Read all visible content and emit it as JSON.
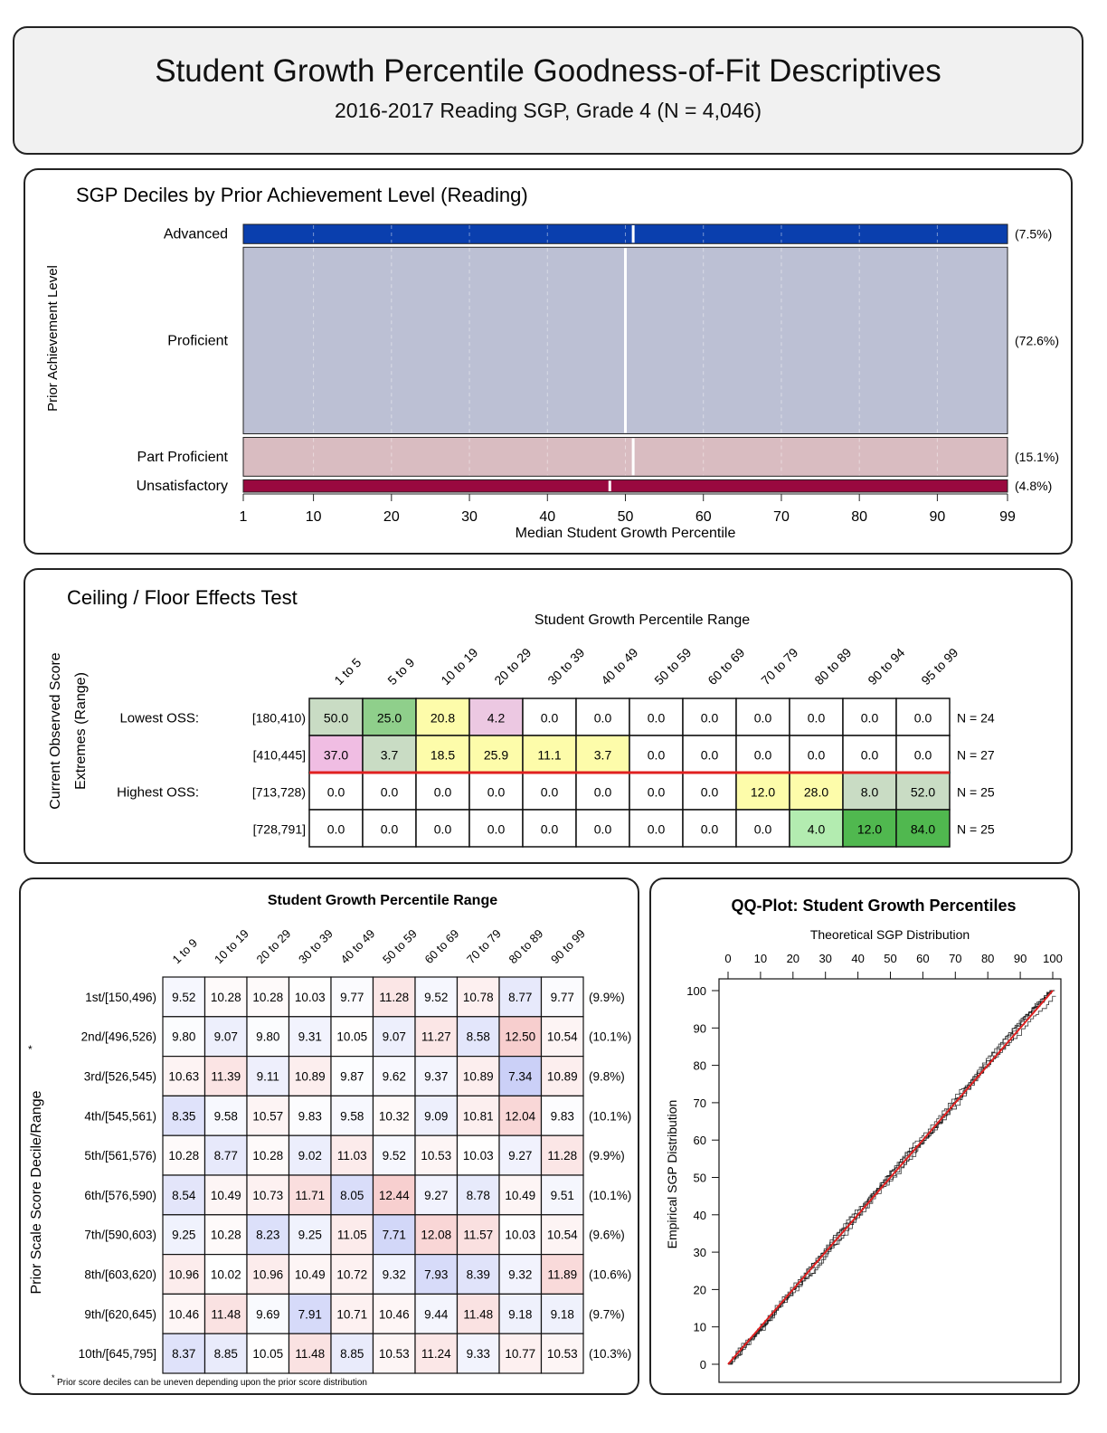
{
  "header": {
    "title": "Student Growth Percentile Goodness-of-Fit Descriptives",
    "subtitle": "2016-2017 Reading SGP, Grade 4 (N = 4,046)"
  },
  "chart_data": [
    {
      "type": "bar",
      "title": "SGP Deciles by Prior Achievement Level (Reading)",
      "ylabel": "Prior Achievement Level",
      "xlabel": "Median Student Growth Percentile",
      "x_ticks": [
        1,
        10,
        20,
        30,
        40,
        50,
        60,
        70,
        80,
        90,
        99
      ],
      "xlim": [
        1,
        99
      ],
      "levels": [
        {
          "name": "Advanced",
          "share": 7.5,
          "share_label": "(7.5%)",
          "median": 51,
          "color": "#0a3fae"
        },
        {
          "name": "Proficient",
          "share": 72.6,
          "share_label": "(72.6%)",
          "median": 50,
          "color": "#bcc0d4"
        },
        {
          "name": "Part Proficient",
          "share": 15.1,
          "share_label": "(15.1%)",
          "median": 51,
          "color": "#d9bcc1"
        },
        {
          "name": "Unsatisfactory",
          "share": 4.8,
          "share_label": "(4.8%)",
          "median": 48,
          "color": "#99093f"
        }
      ],
      "decile_guides": [
        10,
        20,
        30,
        40,
        50,
        60,
        70,
        80,
        90
      ]
    },
    {
      "type": "table",
      "title": "Ceiling / Floor Effects Test",
      "col_header": "Student Growth Percentile Range",
      "row_header": [
        "Current Observed Score",
        "Extremes (Range)"
      ],
      "columns": [
        "1 to 5",
        "5 to 9",
        "10 to 19",
        "20 to 29",
        "30 to 39",
        "40 to 49",
        "50 to 59",
        "60 to 69",
        "70 to 79",
        "80 to 89",
        "90 to 94",
        "95 to 99"
      ],
      "rows": [
        {
          "group": "Lowest OSS:",
          "range": "[180,410)",
          "n": "N = 24",
          "values": [
            "50.0",
            "25.0",
            "20.8",
            "4.2",
            "0.0",
            "0.0",
            "0.0",
            "0.0",
            "0.0",
            "0.0",
            "0.0",
            "0.0"
          ],
          "colors": [
            "#c9dcc4",
            "#8fcf8b",
            "#fdfcaa",
            "#ecc8e2",
            "#fff",
            "#fff",
            "#fff",
            "#fff",
            "#fff",
            "#fff",
            "#fff",
            "#fff"
          ]
        },
        {
          "group": "",
          "range": "[410,445]",
          "n": "N = 27",
          "values": [
            "37.0",
            "3.7",
            "18.5",
            "25.9",
            "11.1",
            "3.7",
            "0.0",
            "0.0",
            "0.0",
            "0.0",
            "0.0",
            "0.0"
          ],
          "colors": [
            "#f0bde3",
            "#c9dcc4",
            "#fdfcaa",
            "#fdfcaa",
            "#fdfcaa",
            "#fdfcaa",
            "#fff",
            "#fff",
            "#fff",
            "#fff",
            "#fff",
            "#fff"
          ]
        },
        {
          "group": "Highest OSS:",
          "range": "[713,728)",
          "n": "N = 25",
          "values": [
            "0.0",
            "0.0",
            "0.0",
            "0.0",
            "0.0",
            "0.0",
            "0.0",
            "0.0",
            "12.0",
            "28.0",
            "8.0",
            "52.0"
          ],
          "colors": [
            "#fff",
            "#fff",
            "#fff",
            "#fff",
            "#fff",
            "#fff",
            "#fff",
            "#fff",
            "#fdfcaa",
            "#fdfcaa",
            "#c9dcc4",
            "#c9dcc4"
          ]
        },
        {
          "group": "",
          "range": "[728,791]",
          "n": "N = 25",
          "values": [
            "0.0",
            "0.0",
            "0.0",
            "0.0",
            "0.0",
            "0.0",
            "0.0",
            "0.0",
            "0.0",
            "4.0",
            "12.0",
            "84.0"
          ],
          "colors": [
            "#fff",
            "#fff",
            "#fff",
            "#fff",
            "#fff",
            "#fff",
            "#fff",
            "#fff",
            "#fff",
            "#b3ecb0",
            "#50b84f",
            "#50b84f"
          ]
        }
      ],
      "divider_color": "#e02020"
    },
    {
      "type": "heatmap",
      "title": "Student Growth Percentile Range",
      "ylabel": "Prior Scale Score Decile/Range",
      "ylabel_mark": "*",
      "footnote_mark": "*",
      "footnote": "Prior score deciles can be uneven depending upon the prior score distribution",
      "columns": [
        "1 to 9",
        "10 to 19",
        "20 to 29",
        "30 to 39",
        "40 to 49",
        "50 to 59",
        "60 to 69",
        "70 to 79",
        "80 to 89",
        "90 to 99"
      ],
      "rows": [
        {
          "label": "1st/[150,496)",
          "share": "(9.9%)",
          "values": [
            "9.52",
            "10.28",
            "10.28",
            "10.03",
            "9.77",
            "11.28",
            "9.52",
            "10.78",
            "8.77",
            "9.77"
          ]
        },
        {
          "label": "2nd/[496,526)",
          "share": "(10.1%)",
          "values": [
            "9.80",
            "9.07",
            "9.80",
            "9.31",
            "10.05",
            "9.07",
            "11.27",
            "8.58",
            "12.50",
            "10.54"
          ]
        },
        {
          "label": "3rd/[526,545)",
          "share": "(9.8%)",
          "values": [
            "10.63",
            "11.39",
            "9.11",
            "10.89",
            "9.87",
            "9.62",
            "9.37",
            "10.89",
            "7.34",
            "10.89"
          ]
        },
        {
          "label": "4th/[545,561)",
          "share": "(10.1%)",
          "values": [
            "8.35",
            "9.58",
            "10.57",
            "9.83",
            "9.58",
            "10.32",
            "9.09",
            "10.81",
            "12.04",
            "9.83"
          ]
        },
        {
          "label": "5th/[561,576)",
          "share": "(9.9%)",
          "values": [
            "10.28",
            "8.77",
            "10.28",
            "9.02",
            "11.03",
            "9.52",
            "10.53",
            "10.03",
            "9.27",
            "11.28"
          ]
        },
        {
          "label": "6th/[576,590)",
          "share": "(10.1%)",
          "values": [
            "8.54",
            "10.49",
            "10.73",
            "11.71",
            "8.05",
            "12.44",
            "9.27",
            "8.78",
            "10.49",
            "9.51"
          ]
        },
        {
          "label": "7th/[590,603)",
          "share": "(9.6%)",
          "values": [
            "9.25",
            "10.28",
            "8.23",
            "9.25",
            "11.05",
            "7.71",
            "12.08",
            "11.57",
            "10.03",
            "10.54"
          ]
        },
        {
          "label": "8th/[603,620)",
          "share": "(10.6%)",
          "values": [
            "10.96",
            "10.02",
            "10.96",
            "10.49",
            "10.72",
            "9.32",
            "7.93",
            "8.39",
            "9.32",
            "11.89"
          ]
        },
        {
          "label": "9th/[620,645)",
          "share": "(9.7%)",
          "values": [
            "10.46",
            "11.48",
            "9.69",
            "7.91",
            "10.71",
            "10.46",
            "9.44",
            "11.48",
            "9.18",
            "9.18"
          ]
        },
        {
          "label": "10th/[645,795]",
          "share": "(10.3%)",
          "values": [
            "8.37",
            "8.85",
            "10.05",
            "11.48",
            "8.85",
            "10.53",
            "11.24",
            "9.33",
            "10.77",
            "10.53"
          ]
        }
      ],
      "low_color": "#3c50e0",
      "high_color": "#e03c3c"
    },
    {
      "type": "line",
      "title": "QQ-Plot: Student Growth Percentiles",
      "xlabel": "Theoretical SGP Distribution",
      "ylabel": "Empirical SGP Distribution",
      "x_ticks": [
        0,
        10,
        20,
        30,
        40,
        50,
        60,
        70,
        80,
        90,
        100
      ],
      "y_ticks": [
        0,
        10,
        20,
        30,
        40,
        50,
        60,
        70,
        80,
        90,
        100
      ],
      "xlim": [
        0,
        100
      ],
      "ylim": [
        0,
        100
      ],
      "reference": {
        "x": [
          0,
          100
        ],
        "y": [
          0,
          100
        ],
        "color": "#e02020"
      },
      "series_color": "#111111",
      "series_count": 5
    }
  ]
}
